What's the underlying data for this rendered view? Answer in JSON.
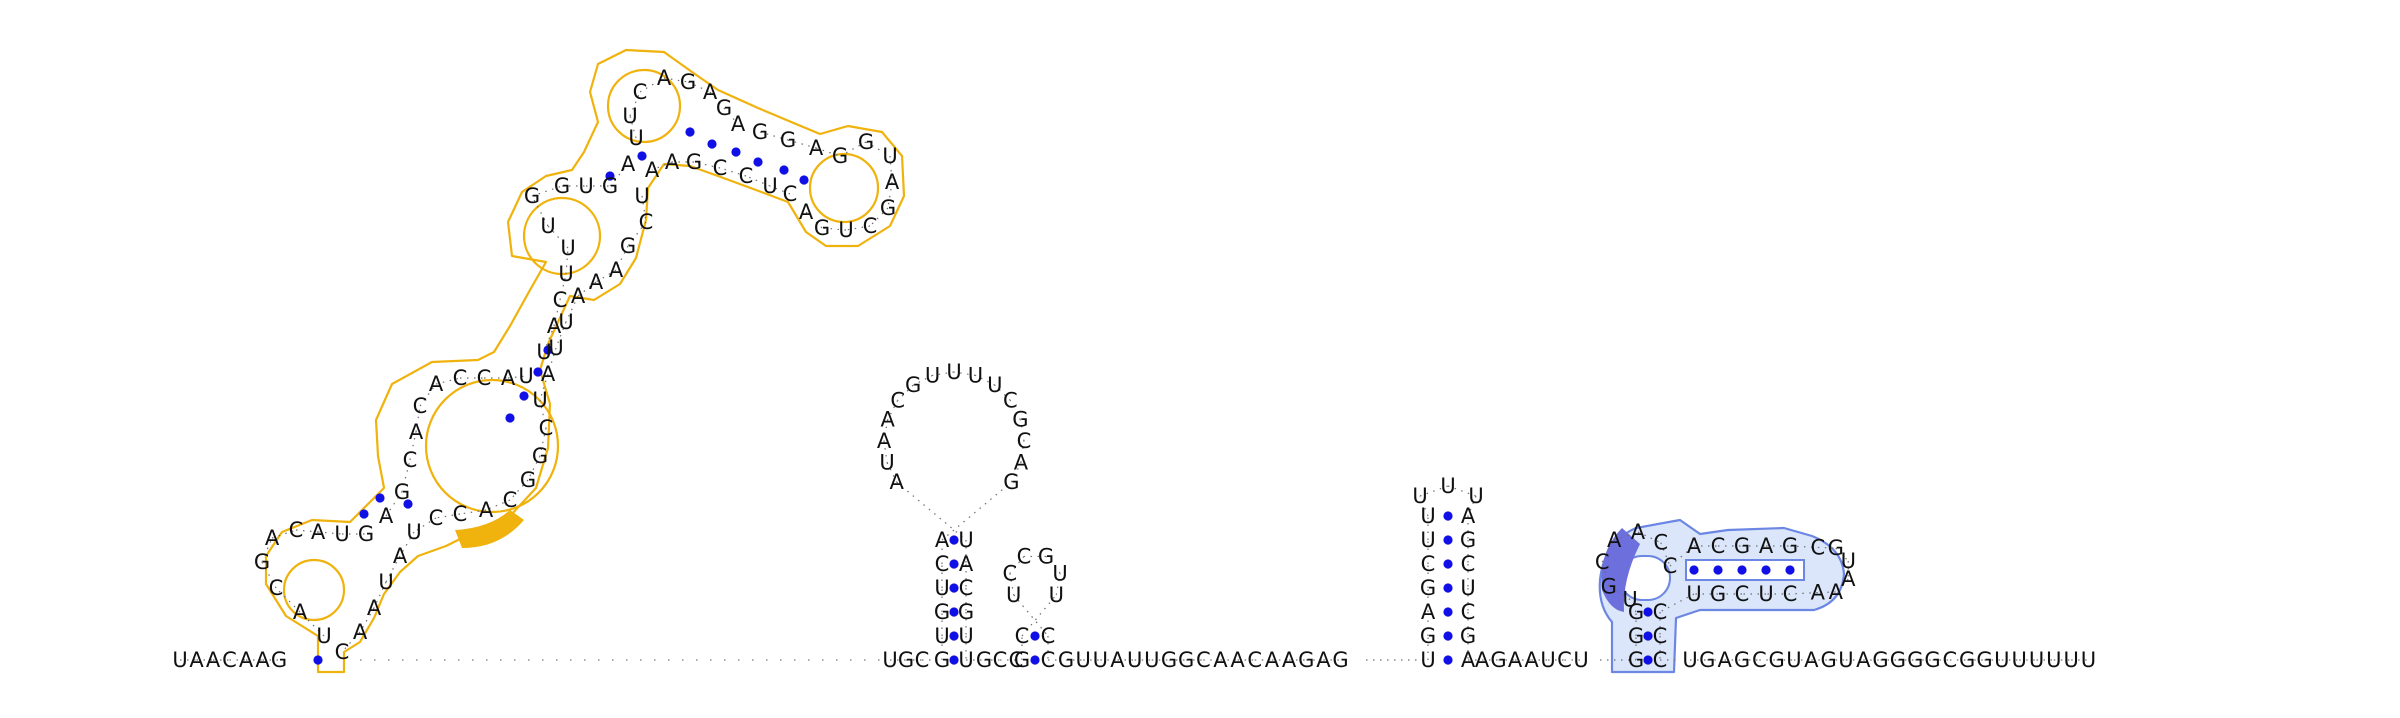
{
  "title": "",
  "structure": "RNA secondary structure diagram",
  "strand_left": "UAACAAG",
  "strand_connector": "C",
  "hairpin_1": {
    "stem_5p": "GUGUCA",
    "stem_3p": "UACGUU",
    "loop": "GACGCUUUUGCAAUA"
  },
  "hairpin_2": {
    "stem_5p": "GC",
    "stem_3p": "CC",
    "loop": "UUGCCU"
  },
  "linker_1": "GUUAUUGGCAACAAGAG",
  "hairpin_3": {
    "stem_5p": "UGAGCUU",
    "stem_3p": "AGCUCGA",
    "loop": "UUU"
  },
  "linker_2": "AGAAUCU",
  "hairpin_4": {
    "stem_5p": "GGG",
    "stem_3p": "CCC",
    "bulge": "UGCAACC",
    "helix_5p": "ACGAG",
    "loop": "CGUAAA",
    "helix_3p": "CUCGU"
  },
  "strand_right": "UGAGCGUAGUAGGGGCGGUUUUUU",
  "large_domain": {
    "multiloop_5p": "GGUGACC",
    "arm": "CGGAUUAUCUA"
  },
  "colors": {
    "nucleotide_text": "#111111",
    "base_pair_dot": "#1010e6",
    "highlight_orange": "#f0b20c",
    "highlight_blue_fill": "#dbe6fb",
    "highlight_blue_stroke": "#6b86e3",
    "highlight_blue_dark": "#6d6fdc"
  }
}
